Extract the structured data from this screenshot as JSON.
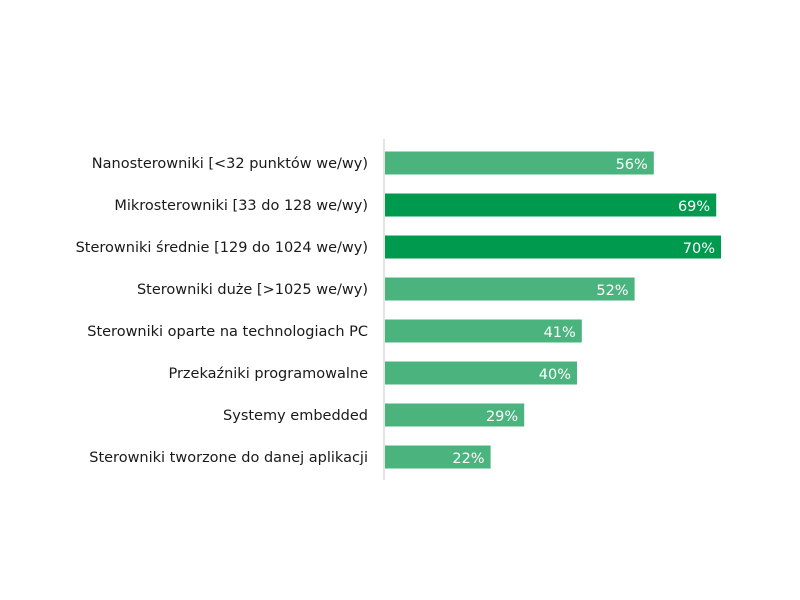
{
  "chart_data": {
    "type": "bar",
    "orientation": "horizontal",
    "title": "",
    "xlabel": "",
    "ylabel": "",
    "xlim": [
      0,
      100
    ],
    "grid": false,
    "value_suffix": "%",
    "categories": [
      "Nanosterowniki [<32 punktów we/wy)",
      "Mikrosterowniki [33 do 128 we/wy)",
      "Sterowniki średnie [129 do 1024 we/wy)",
      "Sterowniki duże [>1025 we/wy)",
      "Sterowniki oparte na technologiach PC",
      "Przekaźniki programowalne",
      "Systemy embedded",
      "Sterowniki tworzone do danej aplikacji"
    ],
    "values": [
      56,
      69,
      70,
      52,
      41,
      40,
      29,
      22
    ],
    "value_labels": [
      "56%",
      "69%",
      "70%",
      "52%",
      "41%",
      "40%",
      "29%",
      "22%"
    ],
    "highlighted": [
      false,
      true,
      true,
      false,
      false,
      false,
      false,
      false
    ],
    "colors": {
      "bar": "#4bb37d",
      "bar_highlight": "#009a4e",
      "axis": "#c8c8c8"
    }
  }
}
